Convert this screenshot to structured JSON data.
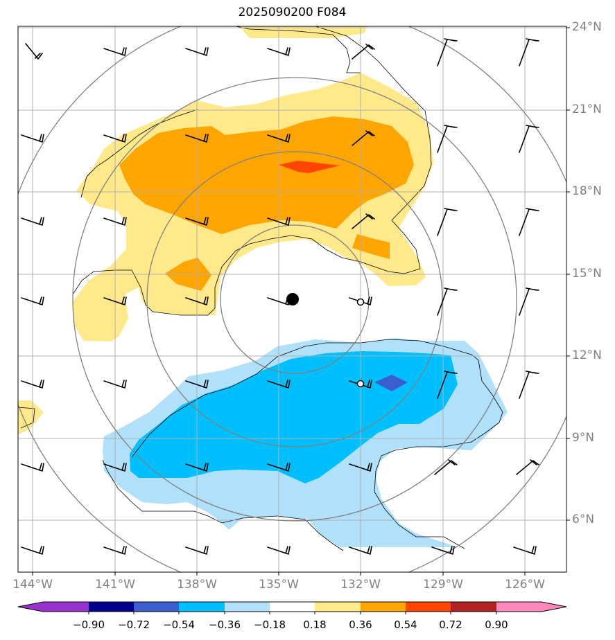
{
  "title": "2025090200 F084",
  "lat_labels": [
    "24°N",
    "21°N",
    "18°N",
    "15°N",
    "12°N",
    "9°N",
    "6°N"
  ],
  "lon_labels": [
    "144°W",
    "141°W",
    "138°W",
    "135°W",
    "132°W",
    "129°W",
    "126°W"
  ],
  "colorbar": {
    "labels": [
      "−0.90",
      "−0.72",
      "−0.54",
      "−0.36",
      "−0.18",
      "0.18",
      "0.36",
      "0.54",
      "0.72",
      "0.90"
    ],
    "colors": [
      "#9932cc",
      "#00008b",
      "#3a5fcd",
      "#00bfff",
      "#b0e0fa",
      "#ffffff",
      "#ffe98a",
      "#ffa500",
      "#ff4500",
      "#b22222",
      "#ff88bb"
    ]
  },
  "map": {
    "extent_lon": [
      -145,
      -125
    ],
    "extent_lat": [
      4.8,
      24
    ],
    "storm_center": {
      "lon": -134.5,
      "lat": 14.1
    },
    "markers": [
      {
        "lon": -132,
        "lat": 14.0
      },
      {
        "lon": -132,
        "lat": 11.0
      }
    ],
    "grid_color": "#b0b0b0",
    "ring_color": "#808080"
  }
}
